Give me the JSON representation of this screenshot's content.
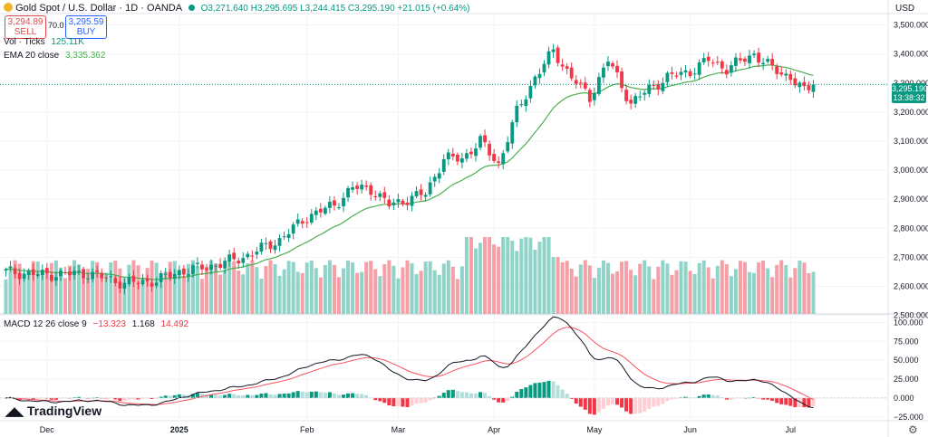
{
  "header": {
    "symbol_title": "Gold Spot / U.S. Dollar · 1D · OANDA",
    "ohlc": "O3,271.640 H3,295.695 L3,244.415 C3,295.190 +21.015 (+0.64%)",
    "sell_price": "3,294.89",
    "sell_label": "SELL",
    "spread": "70.0",
    "buy_price": "3,295.59",
    "buy_label": "BUY",
    "currency": "USD"
  },
  "indicators": {
    "volume_label": "Vol · Ticks",
    "volume_value": "125.11K",
    "ema_label": "EMA 20 close",
    "ema_value": "3,335.362",
    "macd_label": "MACD 12 26 close 9",
    "macd_hist": "−13.323",
    "macd_line": "1.168",
    "macd_signal": "14.492"
  },
  "last_price_tag": {
    "price": "3,295.190",
    "countdown": "13:38:32"
  },
  "branding": "TradingView",
  "colors": {
    "up": "#089981",
    "down": "#f23645",
    "ema": "#4caf50",
    "macd": "#131722",
    "signal": "#f7525f",
    "vol_up": "#8fd3c9",
    "vol_down": "#f5a0a6"
  },
  "chart_data": [
    {
      "type": "candlestick",
      "title": "Gold Spot / U.S. Dollar · 1D · OANDA",
      "ylabel": "USD",
      "ylim": [
        2480,
        3530
      ],
      "y_ticks": [
        "3,500.000",
        "3,400.000",
        "3,300.000",
        "3,200.000",
        "3,100.000",
        "3,000.000",
        "2,900.000",
        "2,800.000",
        "2,700.000",
        "2,600.000",
        "2,500.000"
      ],
      "y_tick_values": [
        3500,
        3400,
        3300,
        3200,
        3100,
        3000,
        2900,
        2800,
        2700,
        2600,
        2500
      ],
      "x_ticks": [
        "Dec",
        "2025",
        "Feb",
        "Mar",
        "Apr",
        "May",
        "Jun",
        "Jul"
      ],
      "x_tick_index": [
        9,
        38,
        66,
        86,
        107,
        129,
        150,
        172
      ],
      "n_bars": 178,
      "key_closes": [
        {
          "i": 0,
          "close": 2650
        },
        {
          "i": 8,
          "close": 2640
        },
        {
          "i": 18,
          "close": 2645
        },
        {
          "i": 26,
          "close": 2610
        },
        {
          "i": 33,
          "close": 2620
        },
        {
          "i": 38,
          "close": 2650
        },
        {
          "i": 45,
          "close": 2670
        },
        {
          "i": 52,
          "close": 2700
        },
        {
          "i": 60,
          "close": 2760
        },
        {
          "i": 66,
          "close": 2840
        },
        {
          "i": 72,
          "close": 2880
        },
        {
          "i": 76,
          "close": 2940
        },
        {
          "i": 80,
          "close": 2935
        },
        {
          "i": 84,
          "close": 2880
        },
        {
          "i": 88,
          "close": 2900
        },
        {
          "i": 92,
          "close": 2920
        },
        {
          "i": 96,
          "close": 3040
        },
        {
          "i": 100,
          "close": 3040
        },
        {
          "i": 104,
          "close": 3100
        },
        {
          "i": 108,
          "close": 3020
        },
        {
          "i": 112,
          "close": 3200
        },
        {
          "i": 116,
          "close": 3320
        },
        {
          "i": 120,
          "close": 3410
        },
        {
          "i": 124,
          "close": 3320
        },
        {
          "i": 128,
          "close": 3250
        },
        {
          "i": 132,
          "close": 3380
        },
        {
          "i": 137,
          "close": 3230
        },
        {
          "i": 141,
          "close": 3280
        },
        {
          "i": 145,
          "close": 3320
        },
        {
          "i": 150,
          "close": 3340
        },
        {
          "i": 154,
          "close": 3380
        },
        {
          "i": 158,
          "close": 3350
        },
        {
          "i": 164,
          "close": 3400
        },
        {
          "i": 168,
          "close": 3350
        },
        {
          "i": 172,
          "close": 3320
        },
        {
          "i": 175,
          "close": 3270
        },
        {
          "i": 177,
          "close": 3295
        }
      ],
      "ema20_last": 3335.362
    },
    {
      "type": "bar",
      "title": "Vol · Ticks",
      "last_value": "125.11K"
    },
    {
      "type": "line",
      "title": "MACD 12 26 close 9",
      "ylim": [
        -30,
        110
      ],
      "y_ticks": [
        "100.000",
        "75.000",
        "50.000",
        "25.000",
        "0.000",
        "−25.000"
      ],
      "y_tick_values": [
        100,
        75,
        50,
        25,
        0,
        -25
      ],
      "series": [
        {
          "name": "MACD",
          "last": 1.168
        },
        {
          "name": "Signal",
          "last": 14.492
        },
        {
          "name": "Histogram",
          "last": -13.323
        }
      ]
    }
  ]
}
